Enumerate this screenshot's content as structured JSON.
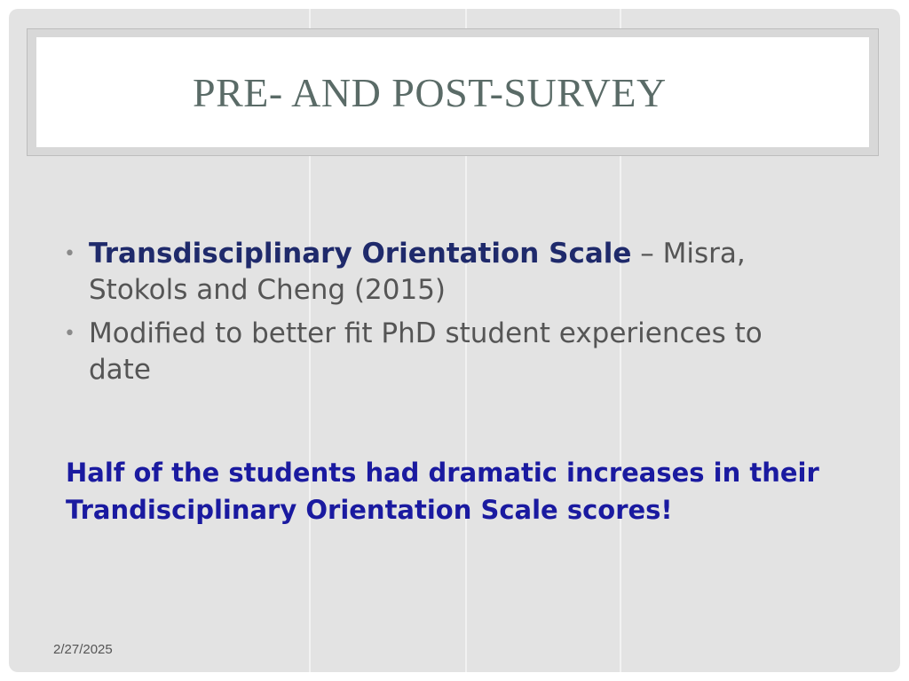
{
  "slide": {
    "title": "PRE- AND POST-SURVEY",
    "bullets": [
      {
        "bold_text": "Transdisciplinary Orientation Scale",
        "text": " – Misra, Stokols and Cheng (2015)"
      },
      {
        "bold_text": "",
        "text": "Modified to better fit PhD student experiences to date"
      }
    ],
    "conclusion": "Half of the students had dramatic increases in their Trandisciplinary Orientation Scale scores!",
    "date": "2/27/2025"
  },
  "colors": {
    "background": "#e3e3e3",
    "title_text": "#5a6b67",
    "bullet_bold": "#1f2a6b",
    "conclusion_text": "#1a1aa0",
    "body_text": "#555555"
  }
}
